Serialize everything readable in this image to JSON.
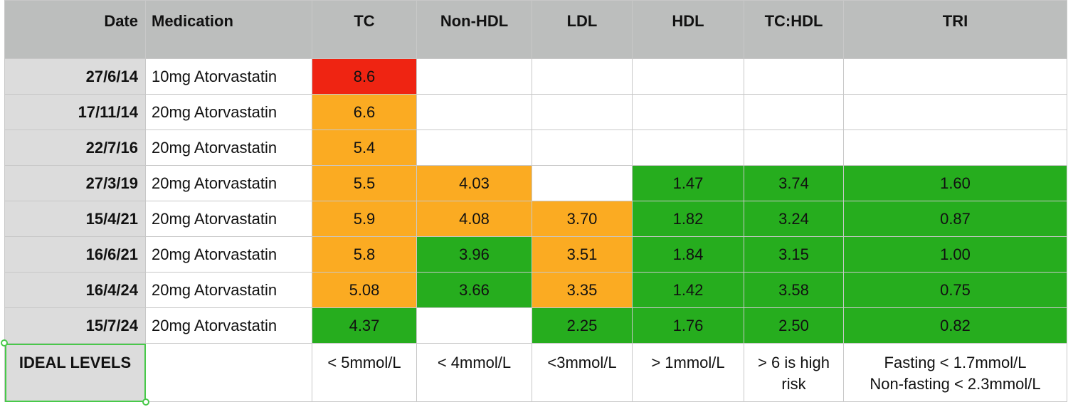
{
  "headers": {
    "date": "Date",
    "medication": "Medication",
    "tc": "TC",
    "nonhdl": "Non-HDL",
    "ldl": "LDL",
    "hdl": "HDL",
    "tchdl": "TC:HDL",
    "tri": "TRI"
  },
  "colors": {
    "red": "#ef2412",
    "orange": "#fbab22",
    "green": "#26ad1e",
    "header_bg": "#bcbebd",
    "date_bg": "#dcdcdc",
    "selection": "#48c94a"
  },
  "rows": [
    {
      "date": "27/6/14",
      "med": "10mg Atorvastatin",
      "tc": "8.6",
      "nonhdl": "",
      "ldl": "",
      "hdl": "",
      "tchdl": "",
      "tri": ""
    },
    {
      "date": "17/11/14",
      "med": "20mg Atorvastatin",
      "tc": "6.6",
      "nonhdl": "",
      "ldl": "",
      "hdl": "",
      "tchdl": "",
      "tri": ""
    },
    {
      "date": "22/7/16",
      "med": "20mg Atorvastatin",
      "tc": "5.4",
      "nonhdl": "",
      "ldl": "",
      "hdl": "",
      "tchdl": "",
      "tri": ""
    },
    {
      "date": "27/3/19",
      "med": "20mg Atorvastatin",
      "tc": "5.5",
      "nonhdl": "4.03",
      "ldl": "",
      "hdl": "1.47",
      "tchdl": "3.74",
      "tri": "1.60"
    },
    {
      "date": "15/4/21",
      "med": "20mg Atorvastatin",
      "tc": "5.9",
      "nonhdl": "4.08",
      "ldl": "3.70",
      "hdl": "1.82",
      "tchdl": "3.24",
      "tri": "0.87"
    },
    {
      "date": "16/6/21",
      "med": "20mg Atorvastatin",
      "tc": "5.8",
      "nonhdl": "3.96",
      "ldl": "3.51",
      "hdl": "1.84",
      "tchdl": "3.15",
      "tri": "1.00"
    },
    {
      "date": "16/4/24",
      "med": "20mg Atorvastatin",
      "tc": "5.08",
      "nonhdl": "3.66",
      "ldl": "3.35",
      "hdl": "1.42",
      "tchdl": "3.58",
      "tri": "0.75"
    },
    {
      "date": "15/7/24",
      "med": " 20mg Atorvastatin",
      "tc": "4.37",
      "nonhdl": "",
      "ldl": "2.25",
      "hdl": "1.76",
      "tchdl": "2.50",
      "tri": "0.82"
    }
  ],
  "ideal": {
    "label": "IDEAL LEVELS",
    "med": "",
    "tc": "< 5mmol/L",
    "nonhdl": "< 4mmol/L",
    "ldl": "<3mmol/L",
    "hdl": "> 1mmol/L",
    "tchdl_line1": "> 6 is high",
    "tchdl_line2": "risk",
    "tri_line1": "Fasting < 1.7mmol/L",
    "tri_line2": "Non-fasting < 2.3mmol/L"
  }
}
